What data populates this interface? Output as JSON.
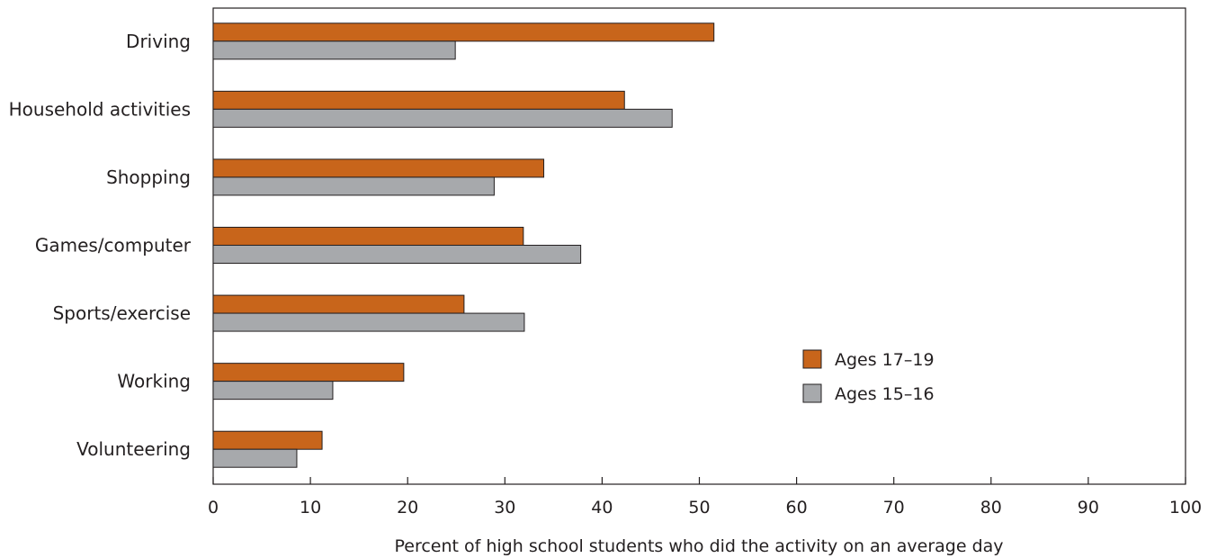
{
  "chart_data": {
    "type": "bar",
    "orientation": "horizontal",
    "categories": [
      "Driving",
      "Household activities",
      "Shopping",
      "Games/computer",
      "Sports/exercise",
      "Working",
      "Volunteering"
    ],
    "series": [
      {
        "name": "Ages 17–19",
        "color": "#c8651b",
        "values": [
          51.5,
          42.3,
          34.0,
          31.9,
          25.8,
          19.6,
          11.2
        ]
      },
      {
        "name": "Ages 15–16",
        "color": "#a7a9ac",
        "values": [
          24.9,
          47.2,
          28.9,
          37.8,
          32.0,
          12.3,
          8.6
        ]
      }
    ],
    "title": "",
    "xlabel": "Percent of high school students who did the activity on an average day",
    "ylabel": "",
    "xlim": [
      0,
      100
    ],
    "xticks": [
      "0",
      "10",
      "20",
      "30",
      "40",
      "50",
      "60",
      "70",
      "80",
      "90",
      "100"
    ],
    "grid": false,
    "legend_position": "right-center"
  }
}
